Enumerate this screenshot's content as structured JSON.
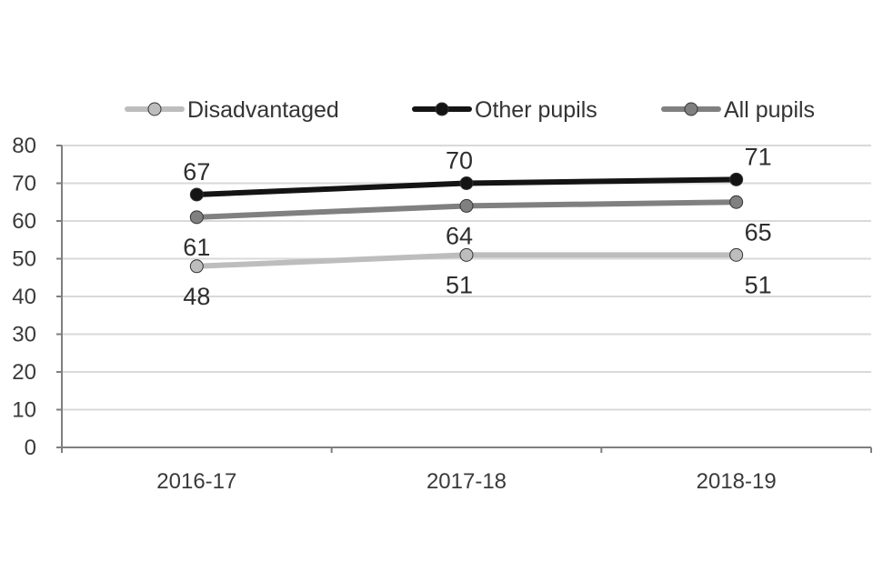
{
  "chart_data": {
    "type": "line",
    "title": "",
    "xlabel": "",
    "ylabel": "",
    "categories": [
      "2016-17",
      "2017-18",
      "2018-19"
    ],
    "ylim": [
      0,
      80
    ],
    "yticks": [
      0,
      10,
      20,
      30,
      40,
      50,
      60,
      70,
      80
    ],
    "grid": true,
    "legend_position": "top",
    "series": [
      {
        "name": "Disadvantaged",
        "values": [
          48,
          51,
          51
        ],
        "color": "#bdbdbd",
        "label_position": "below"
      },
      {
        "name": "Other pupils",
        "values": [
          67,
          70,
          71
        ],
        "color": "#141414",
        "label_position": "above"
      },
      {
        "name": "All pupils",
        "values": [
          61,
          64,
          65
        ],
        "color": "#808080",
        "label_position": "below"
      }
    ]
  }
}
